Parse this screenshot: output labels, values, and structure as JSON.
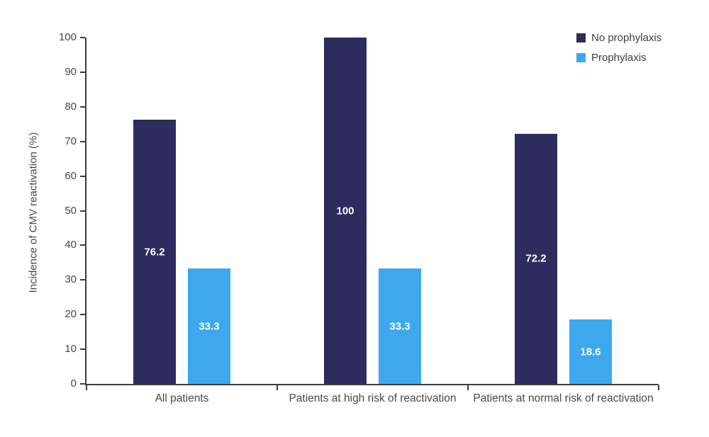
{
  "chart_data": {
    "type": "bar",
    "title": "",
    "xlabel": "",
    "ylabel": "Incidence of CMV reactivation (%)",
    "ylim": [
      0,
      100
    ],
    "yticks": [
      0,
      10,
      20,
      30,
      40,
      50,
      60,
      70,
      80,
      90,
      100
    ],
    "grid": false,
    "legend_position": "top-right",
    "categories": [
      "All patients",
      "Patients at high risk of reactivation",
      "Patients at normal risk of reactivation"
    ],
    "series": [
      {
        "name": "No prophylaxis",
        "color": "#2E2B5E",
        "values": [
          76.2,
          100,
          72.2
        ],
        "labels": [
          "76.2",
          "100",
          "72.2"
        ]
      },
      {
        "name": "Prophylaxis",
        "color": "#3EA8EE",
        "values": [
          33.3,
          33.3,
          18.6
        ],
        "labels": [
          "33.3",
          "33.3",
          "18.6"
        ]
      }
    ]
  },
  "colors": {
    "background": "#ffffff",
    "axis": "#3d3d3d",
    "tick_text": "#484848",
    "value_label_text": "#ffffff"
  }
}
